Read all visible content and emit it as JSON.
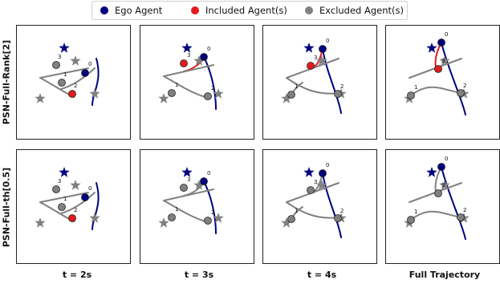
{
  "legend": [
    {
      "label": "Ego Agent",
      "color": "#00007f"
    },
    {
      "label": "Included Agent(s)",
      "color": "#e41a1c"
    },
    {
      "label": "Excluded Agent(s)",
      "color": "#808080"
    }
  ],
  "rows": [
    "PSN-Full-Rank[2]",
    "PSN-Full-th[0.5]"
  ],
  "columns": [
    "t = 2s",
    "t = 3s",
    "t = 4s",
    "Full Trajectory"
  ],
  "agent_ids": [
    "0",
    "1",
    "2",
    "3"
  ],
  "colors": {
    "ego": "#00007f",
    "included": "#e41a1c",
    "excluded": "#808080"
  }
}
